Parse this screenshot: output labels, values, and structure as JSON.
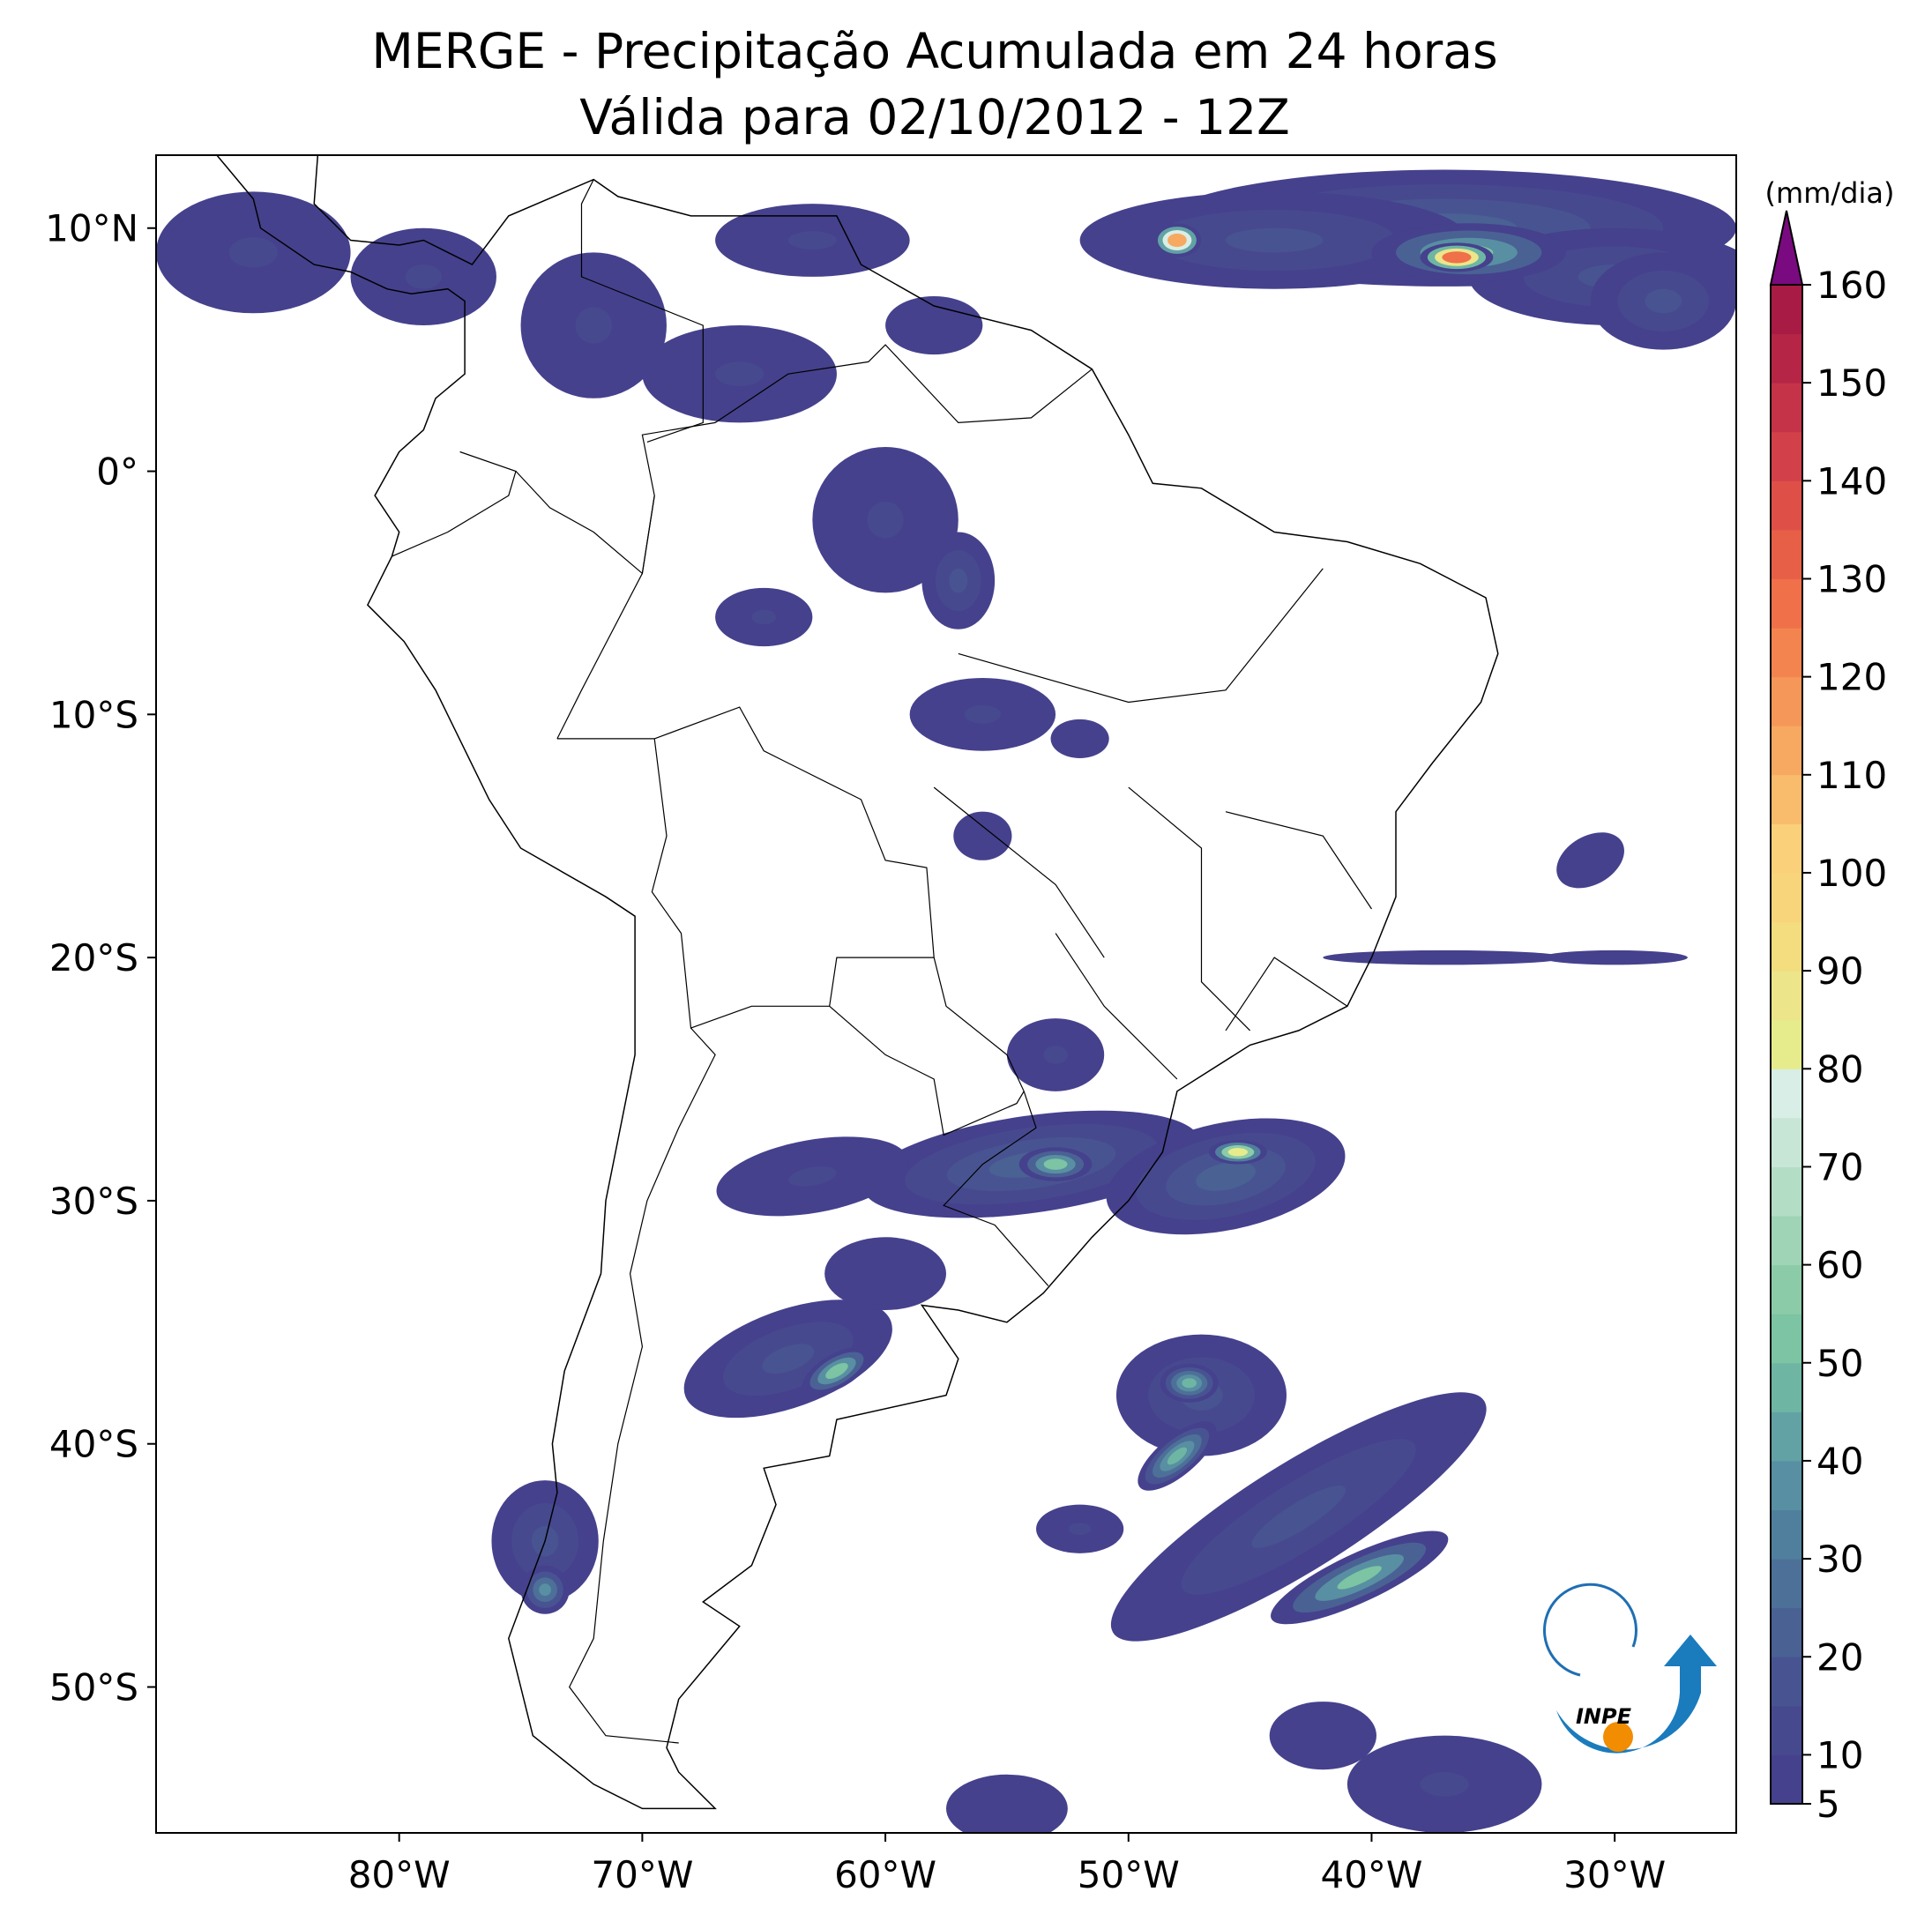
{
  "header": {
    "title": "MERGE - Precipitação Acumulada em 24 horas",
    "subtitle": "Válida para 02/10/2012 - 12Z"
  },
  "map": {
    "lonlim": [
      -90,
      -25
    ],
    "latlim": [
      -56,
      13
    ],
    "lon_ticks": [
      {
        "value": -80,
        "label": "80°W"
      },
      {
        "value": -70,
        "label": "70°W"
      },
      {
        "value": -60,
        "label": "60°W"
      },
      {
        "value": -50,
        "label": "50°W"
      },
      {
        "value": -40,
        "label": "40°W"
      },
      {
        "value": -30,
        "label": "30°W"
      }
    ],
    "lat_ticks": [
      {
        "value": 10,
        "label": "10°N"
      },
      {
        "value": 0,
        "label": "0°"
      },
      {
        "value": -10,
        "label": "10°S"
      },
      {
        "value": -20,
        "label": "20°S"
      },
      {
        "value": -30,
        "label": "30°S"
      },
      {
        "value": -40,
        "label": "40°S"
      },
      {
        "value": -50,
        "label": "50°S"
      }
    ]
  },
  "colorbar": {
    "label": "(mm/dia)",
    "lim": [
      5,
      160
    ],
    "ticks": [
      5,
      10,
      20,
      30,
      40,
      50,
      60,
      70,
      80,
      90,
      100,
      110,
      120,
      130,
      140,
      150,
      160
    ],
    "colors": [
      "#45418d",
      "#47498f",
      "#485491",
      "#4a6194",
      "#4d7098",
      "#507f9d",
      "#588fa2",
      "#62a2a5",
      "#6eb6a3",
      "#7cc4a3",
      "#8ccba8",
      "#9fd4b6",
      "#b4ddc6",
      "#c8e6d6",
      "#d9eee6",
      "#e6ec8c",
      "#ede58a",
      "#f3dd7e",
      "#f8d57a",
      "#fbd07b",
      "#f9bb6c",
      "#f7a962",
      "#f59758",
      "#f3844f",
      "#ef7049",
      "#e85f47",
      "#de4f48",
      "#d2414a",
      "#c43348",
      "#b52646",
      "#a81b44"
    ],
    "extend_color": "#7a0a7f"
  },
  "logo": {
    "text": "INPE"
  }
}
